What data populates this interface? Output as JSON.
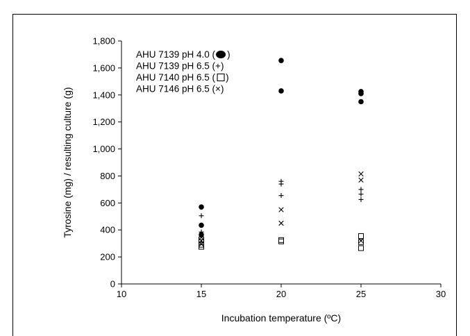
{
  "chart_data": {
    "type": "scatter",
    "title": "",
    "xlabel": "Incubation temperature (ºC)",
    "ylabel": "Tyrosine (mg) / resulting culture (g)",
    "xlim": [
      10,
      30
    ],
    "ylim": [
      0,
      1800
    ],
    "x_ticks": [
      10,
      15,
      20,
      25,
      30
    ],
    "y_ticks": [
      0,
      200,
      400,
      600,
      800,
      1000,
      1200,
      1400,
      1600,
      1800
    ],
    "y_tick_labels": [
      "0",
      "200",
      "400",
      "600",
      "800",
      "1,000",
      "1,200",
      "1,400",
      "1,600",
      "1,800"
    ],
    "grid": false,
    "legend_position": "top-left",
    "series": [
      {
        "name": "AHU 7139 pH 4.0",
        "marker": "filled-circle",
        "points": [
          [
            15,
            570
          ],
          [
            15,
            435
          ],
          [
            15,
            365
          ],
          [
            20,
            1655
          ],
          [
            20,
            1430
          ],
          [
            25,
            1425
          ],
          [
            25,
            1410
          ],
          [
            25,
            1350
          ]
        ]
      },
      {
        "name": "AHU 7139 pH 6.5",
        "marker": "plus",
        "points": [
          [
            15,
            505
          ],
          [
            15,
            385
          ],
          [
            20,
            760
          ],
          [
            20,
            740
          ],
          [
            20,
            655
          ],
          [
            25,
            700
          ],
          [
            25,
            665
          ],
          [
            25,
            625
          ]
        ]
      },
      {
        "name": "AHU 7140 pH 6.5",
        "marker": "open-square",
        "points": [
          [
            15,
            330
          ],
          [
            15,
            310
          ],
          [
            15,
            290
          ],
          [
            15,
            275
          ],
          [
            20,
            325
          ],
          [
            20,
            315
          ],
          [
            25,
            355
          ],
          [
            25,
            310
          ],
          [
            25,
            265
          ]
        ]
      },
      {
        "name": "AHU 7146 pH 6.5",
        "marker": "cross",
        "points": [
          [
            15,
            345
          ],
          [
            15,
            320
          ],
          [
            15,
            295
          ],
          [
            20,
            550
          ],
          [
            20,
            450
          ],
          [
            25,
            815
          ],
          [
            25,
            770
          ],
          [
            25,
            320
          ]
        ]
      }
    ]
  },
  "legend": [
    {
      "label": "AHU 7139 pH 4.0  (",
      "suffix": ")",
      "marker": "filled-circle"
    },
    {
      "label": "AHU 7139 pH 6.5 (+)",
      "suffix": "",
      "marker": "none"
    },
    {
      "label": "AHU 7140 pH 6.5 (",
      "suffix": ")",
      "marker": "open-square"
    },
    {
      "label": "AHU 7146 pH 6.5 (×)",
      "suffix": "",
      "marker": "none"
    }
  ]
}
